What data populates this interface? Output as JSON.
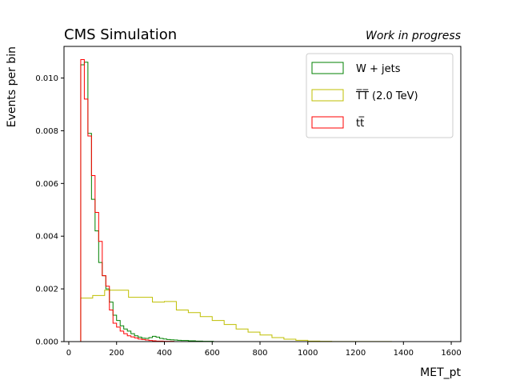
{
  "chart_data": {
    "type": "histogram",
    "title": "CMS Simulation",
    "subtitle": "Work in progress",
    "xlabel": "MET_pt",
    "ylabel": "Events per bin",
    "xlim": [
      -20,
      1640
    ],
    "ylim": [
      0,
      0.0112
    ],
    "xticks": [
      0,
      200,
      400,
      600,
      800,
      1000,
      1200,
      1400,
      1600
    ],
    "yticks": [
      0.0,
      0.002,
      0.004,
      0.006,
      0.008,
      0.01
    ],
    "ytick_labels": [
      "0.000",
      "0.002",
      "0.004",
      "0.006",
      "0.008",
      "0.010"
    ],
    "grid": false,
    "legend_position": "top-right",
    "series": [
      {
        "name": "W + jets",
        "legend_label": "W + jets",
        "color": "#008000",
        "edges": [
          50,
          65,
          80,
          95,
          110,
          125,
          140,
          155,
          170,
          185,
          200,
          215,
          230,
          245,
          260,
          275,
          290,
          305,
          320,
          335,
          350,
          365,
          380,
          395,
          410,
          425,
          440,
          455,
          470,
          485,
          500,
          515,
          530,
          545,
          560,
          575,
          590,
          605
        ],
        "values": [
          0.0105,
          0.0106,
          0.0079,
          0.0054,
          0.0042,
          0.003,
          0.0025,
          0.002,
          0.0015,
          0.001,
          0.0008,
          0.0006,
          0.00048,
          0.0004,
          0.0003,
          0.00022,
          0.00017,
          0.00013,
          0.00012,
          0.00015,
          0.0002,
          0.00017,
          0.00012,
          0.0001,
          8e-05,
          7e-05,
          6e-05,
          5e-05,
          4e-05,
          4e-05,
          3e-05,
          3e-05,
          2e-05,
          2e-05,
          1e-05,
          1e-05,
          1e-05
        ]
      },
      {
        "name": "TT(2.0 TeV)",
        "legend_label": "T̅T̅ (2.0 TeV)",
        "color": "#bfbf00",
        "edges": [
          50,
          100,
          150,
          200,
          250,
          300,
          350,
          400,
          450,
          500,
          550,
          600,
          650,
          700,
          750,
          800,
          850,
          900,
          950,
          1000,
          1050,
          1100,
          1150,
          1200,
          1250,
          1300,
          1350,
          1400,
          1450,
          1500,
          1550,
          1600
        ],
        "values": [
          0.00165,
          0.00175,
          0.00195,
          0.00195,
          0.00168,
          0.00168,
          0.0015,
          0.00152,
          0.0012,
          0.0011,
          0.00095,
          0.0008,
          0.00065,
          0.00048,
          0.00036,
          0.00025,
          0.00015,
          9e-05,
          5e-05,
          2e-05,
          1e-05,
          5e-06,
          4e-06,
          3e-06,
          2e-06,
          2e-06,
          1e-06,
          1e-06,
          1e-06,
          1e-06,
          1e-06
        ]
      },
      {
        "name": "tt",
        "legend_label": "tt̅",
        "color": "#ff0000",
        "edges": [
          50,
          65,
          80,
          95,
          110,
          125,
          140,
          155,
          170,
          185,
          200,
          215,
          230,
          245,
          260,
          275,
          290,
          305,
          320,
          335,
          350,
          365,
          380,
          395,
          410,
          425,
          440
        ],
        "values": [
          0.0107,
          0.0092,
          0.0078,
          0.0063,
          0.0049,
          0.0038,
          0.0025,
          0.0021,
          0.0012,
          0.0007,
          0.00055,
          0.0004,
          0.0003,
          0.00022,
          0.00018,
          0.00014,
          0.0001,
          8e-05,
          6e-05,
          4e-05,
          3e-05,
          2e-05,
          2e-05,
          1e-05,
          1e-05,
          1e-05
        ]
      }
    ]
  }
}
